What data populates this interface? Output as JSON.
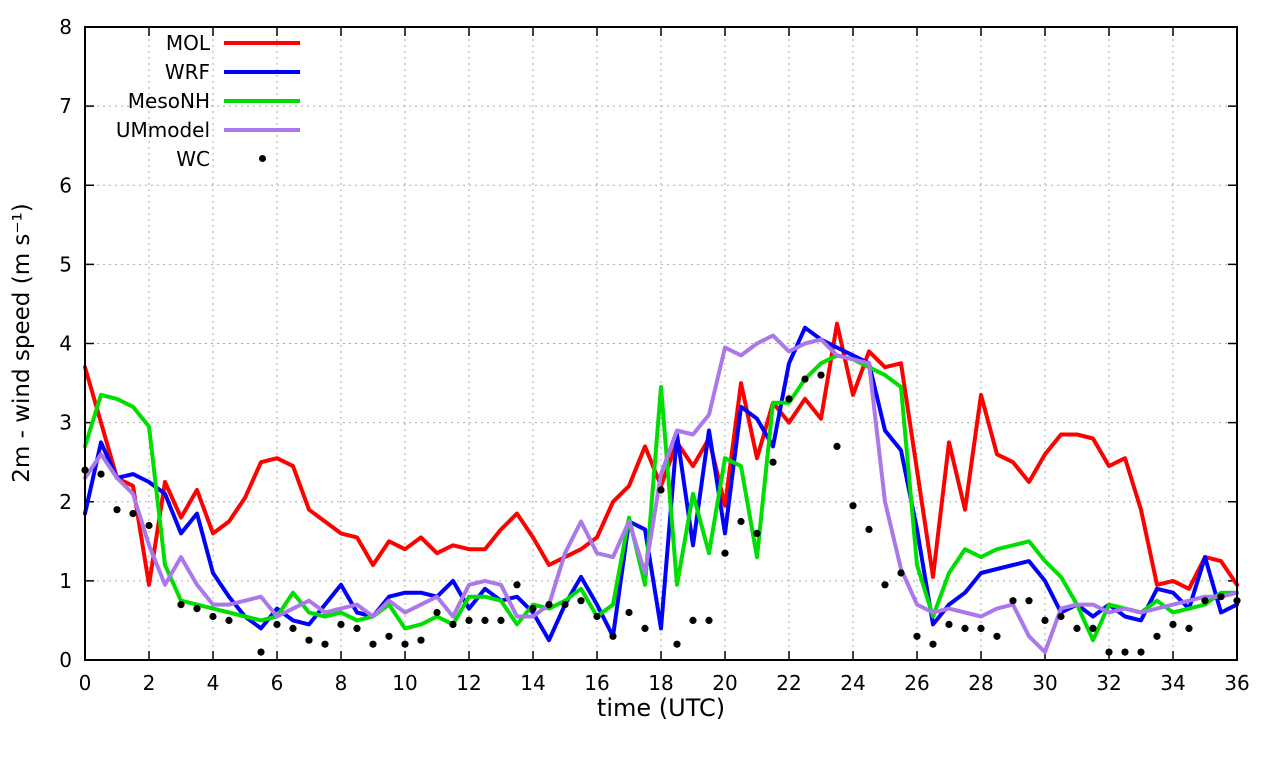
{
  "chart_data": {
    "type": "line",
    "title": "",
    "xlabel": "time (UTC)",
    "ylabel": "2m - wind speed  (m s⁻¹)",
    "xlim": [
      0,
      36
    ],
    "ylim": [
      0,
      8
    ],
    "xtick_step": 2,
    "ytick_step": 1,
    "grid": true,
    "legend_position": "top-left-inside",
    "x": [
      0,
      0.5,
      1,
      1.5,
      2,
      2.5,
      3,
      3.5,
      4,
      4.5,
      5,
      5.5,
      6,
      6.5,
      7,
      7.5,
      8,
      8.5,
      9,
      9.5,
      10,
      10.5,
      11,
      11.5,
      12,
      12.5,
      13,
      13.5,
      14,
      14.5,
      15,
      15.5,
      16,
      16.5,
      17,
      17.5,
      18,
      18.5,
      19,
      19.5,
      20,
      20.5,
      21,
      21.5,
      22,
      22.5,
      23,
      23.5,
      24,
      24.5,
      25,
      25.5,
      26,
      26.5,
      27,
      27.5,
      28,
      28.5,
      29,
      29.5,
      30,
      30.5,
      31,
      31.5,
      32,
      32.5,
      33,
      33.5,
      34,
      34.5,
      35,
      35.5,
      36
    ],
    "series": [
      {
        "name": "MOL",
        "type": "line",
        "color": "#ff0000",
        "values": [
          3.7,
          3.0,
          2.3,
          2.2,
          0.95,
          2.25,
          1.8,
          2.15,
          1.6,
          1.75,
          2.05,
          2.5,
          2.55,
          2.45,
          1.9,
          1.75,
          1.6,
          1.55,
          1.2,
          1.5,
          1.4,
          1.55,
          1.35,
          1.45,
          1.4,
          1.4,
          1.65,
          1.85,
          1.55,
          1.2,
          1.3,
          1.4,
          1.55,
          2.0,
          2.2,
          2.7,
          2.2,
          2.75,
          2.45,
          2.8,
          1.95,
          3.5,
          2.55,
          3.25,
          3.0,
          3.3,
          3.05,
          4.25,
          3.35,
          3.9,
          3.7,
          3.75,
          2.4,
          1.05,
          2.75,
          1.9,
          3.35,
          2.6,
          2.5,
          2.25,
          2.6,
          2.85,
          2.85,
          2.8,
          2.45,
          2.55,
          1.9,
          0.95,
          1.0,
          0.9,
          1.3,
          1.25,
          0.95
        ]
      },
      {
        "name": "WRF",
        "type": "line",
        "color": "#0000ff",
        "values": [
          1.85,
          2.75,
          2.3,
          2.35,
          2.25,
          2.1,
          1.6,
          1.85,
          1.1,
          0.8,
          0.55,
          0.4,
          0.65,
          0.5,
          0.45,
          0.7,
          0.95,
          0.6,
          0.55,
          0.8,
          0.85,
          0.85,
          0.8,
          1.0,
          0.65,
          0.9,
          0.75,
          0.8,
          0.6,
          0.25,
          0.7,
          1.05,
          0.7,
          0.3,
          1.75,
          1.65,
          0.4,
          2.85,
          1.45,
          2.9,
          1.6,
          3.2,
          3.05,
          2.7,
          3.75,
          4.2,
          4.05,
          3.95,
          3.85,
          3.75,
          2.9,
          2.65,
          1.65,
          0.45,
          0.7,
          0.85,
          1.1,
          1.15,
          1.2,
          1.25,
          1.0,
          0.6,
          0.7,
          0.55,
          0.7,
          0.55,
          0.5,
          0.9,
          0.85,
          0.65,
          1.3,
          0.6,
          0.7
        ]
      },
      {
        "name": "MesoNH",
        "type": "line",
        "color": "#00dd00",
        "values": [
          2.7,
          3.35,
          3.3,
          3.2,
          2.95,
          1.2,
          0.75,
          0.7,
          0.65,
          0.6,
          0.55,
          0.5,
          0.55,
          0.85,
          0.6,
          0.55,
          0.6,
          0.5,
          0.55,
          0.7,
          0.4,
          0.45,
          0.55,
          0.45,
          0.8,
          0.8,
          0.75,
          0.45,
          0.7,
          0.65,
          0.75,
          0.9,
          0.55,
          0.7,
          1.8,
          0.95,
          3.45,
          0.95,
          2.1,
          1.35,
          2.55,
          2.45,
          1.3,
          3.25,
          3.25,
          3.55,
          3.75,
          3.85,
          3.8,
          3.7,
          3.6,
          3.45,
          1.2,
          0.55,
          1.1,
          1.4,
          1.3,
          1.4,
          1.45,
          1.5,
          1.25,
          1.05,
          0.7,
          0.25,
          0.7,
          0.65,
          0.6,
          0.75,
          0.6,
          0.65,
          0.7,
          0.85,
          0.85
        ]
      },
      {
        "name": "UMmodel",
        "type": "line",
        "color": "#aa78eb",
        "values": [
          2.3,
          2.6,
          2.3,
          2.1,
          1.45,
          0.95,
          1.3,
          0.95,
          0.7,
          0.7,
          0.75,
          0.8,
          0.55,
          0.65,
          0.75,
          0.6,
          0.65,
          0.7,
          0.55,
          0.75,
          0.6,
          0.7,
          0.8,
          0.55,
          0.95,
          1.0,
          0.95,
          0.55,
          0.55,
          0.7,
          1.35,
          1.75,
          1.35,
          1.3,
          1.75,
          1.1,
          2.35,
          2.9,
          2.85,
          3.1,
          3.95,
          3.85,
          4.0,
          4.1,
          3.9,
          4.0,
          4.05,
          3.85,
          3.8,
          3.75,
          2.0,
          1.15,
          0.7,
          0.6,
          0.65,
          0.6,
          0.55,
          0.65,
          0.7,
          0.3,
          0.1,
          0.65,
          0.7,
          0.7,
          0.6,
          0.65,
          0.6,
          0.65,
          0.7,
          0.75,
          0.8,
          0.8,
          0.85
        ]
      },
      {
        "name": "WC",
        "type": "scatter",
        "color": "#000000",
        "x": [
          0,
          0.5,
          1,
          1.5,
          2,
          3,
          3.5,
          4,
          4.5,
          5.5,
          6,
          6.5,
          7,
          7.5,
          8,
          8.5,
          9,
          9.5,
          10,
          10.5,
          11,
          11.5,
          12,
          12.5,
          13,
          13.5,
          14,
          14.5,
          15,
          15.5,
          16,
          16.5,
          17,
          17.5,
          18,
          18.5,
          19,
          19.5,
          20,
          20.5,
          21,
          21.5,
          22,
          22.5,
          23,
          23.5,
          24,
          24.5,
          25,
          25.5,
          26,
          26.5,
          27,
          27.5,
          28,
          28.5,
          29,
          29.5,
          30,
          30.5,
          31,
          31.5,
          32,
          32.5,
          33,
          33.5,
          34,
          34.5,
          35,
          35.5,
          36
        ],
        "values": [
          2.4,
          2.35,
          1.9,
          1.85,
          1.7,
          0.7,
          0.65,
          0.55,
          0.5,
          0.1,
          0.45,
          0.4,
          0.25,
          0.2,
          0.45,
          0.4,
          0.2,
          0.3,
          0.2,
          0.25,
          0.6,
          0.45,
          0.5,
          0.5,
          0.5,
          0.95,
          0.65,
          0.7,
          0.7,
          0.75,
          0.55,
          0.3,
          0.6,
          0.4,
          2.15,
          0.2,
          0.5,
          0.5,
          1.35,
          1.75,
          1.6,
          2.5,
          3.3,
          3.55,
          3.6,
          2.7,
          1.95,
          1.65,
          0.95,
          1.1,
          0.3,
          0.2,
          0.45,
          0.4,
          0.4,
          0.3,
          0.75,
          0.75,
          0.5,
          0.55,
          0.4,
          0.4,
          0.1,
          0.1,
          0.1,
          0.3,
          0.45,
          0.4,
          0.75,
          0.8,
          0.75
        ]
      }
    ],
    "style": {
      "grid_color": "#a8a8a8",
      "border_color": "#000000",
      "line_width": 4,
      "dot_radius": 3.6
    }
  }
}
